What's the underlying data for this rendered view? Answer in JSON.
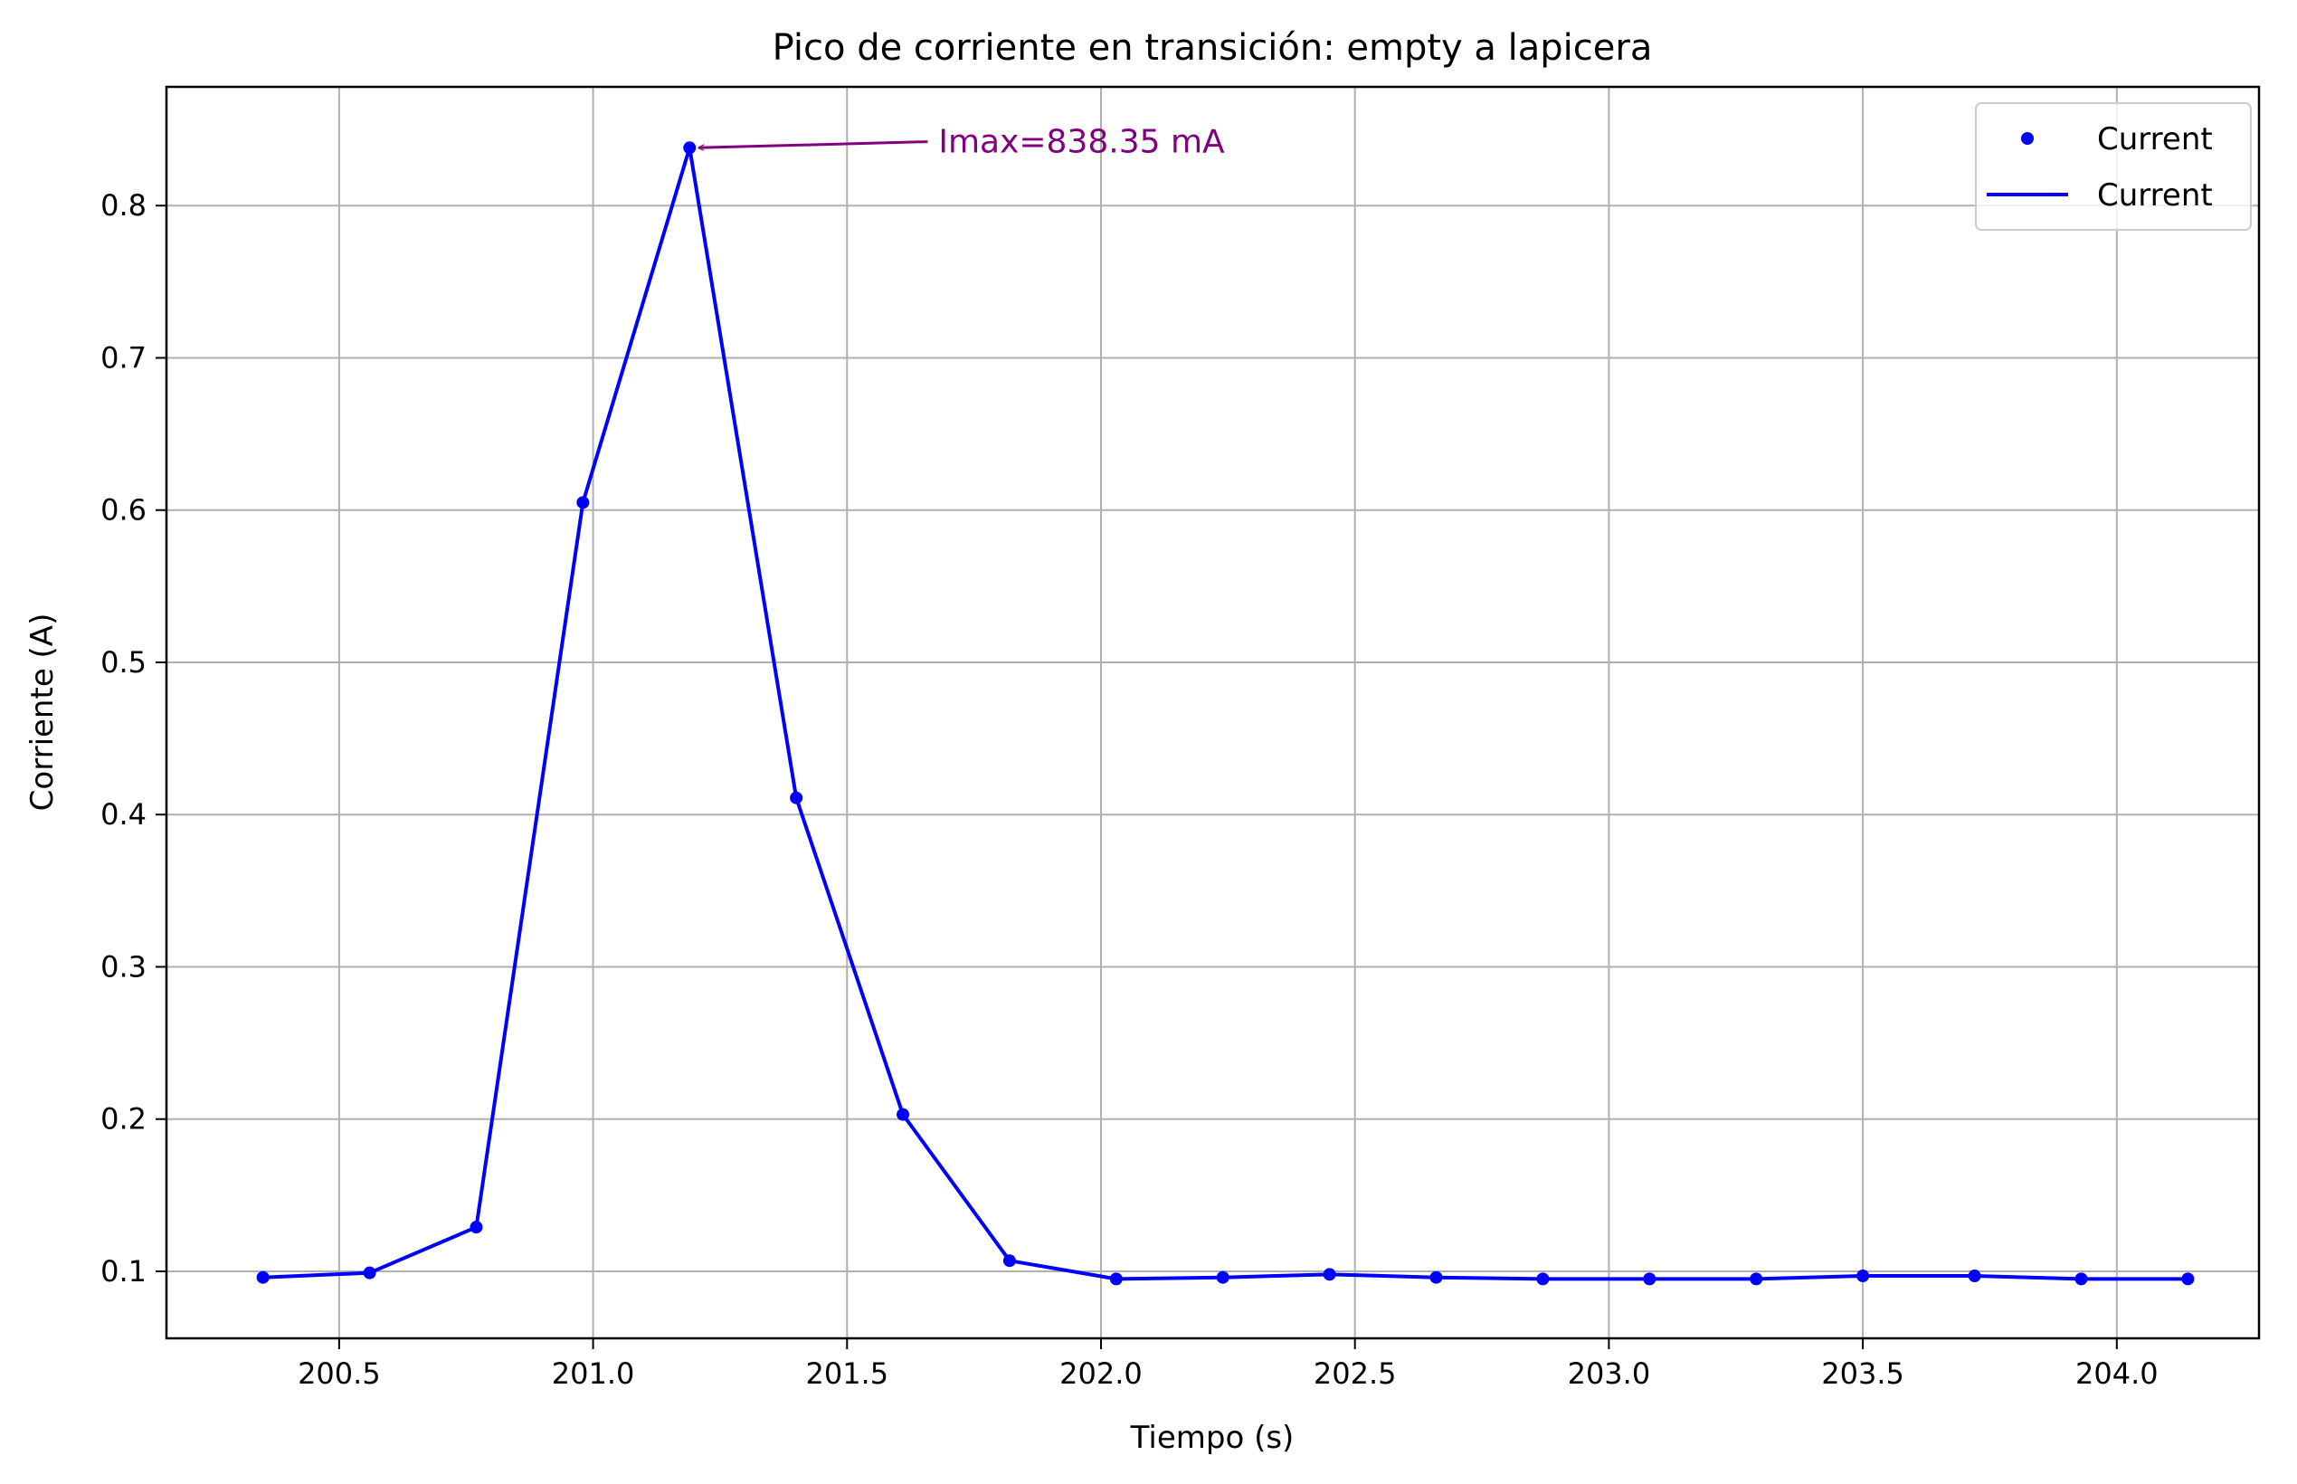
{
  "chart_data": {
    "type": "line",
    "title": "Pico de corriente en transición: empty a lapicera",
    "xlabel": "Tiempo (s)",
    "ylabel": "Corriente (A)",
    "xlim": [
      200.16,
      204.28
    ],
    "ylim": [
      0.056,
      0.878
    ],
    "xticks": [
      200.5,
      201.0,
      201.5,
      202.0,
      202.5,
      203.0,
      203.5,
      204.0
    ],
    "xtick_labels": [
      "200.5",
      "201.0",
      "201.5",
      "202.0",
      "202.5",
      "203.0",
      "203.5",
      "204.0"
    ],
    "yticks": [
      0.1,
      0.2,
      0.3,
      0.4,
      0.5,
      0.6,
      0.7,
      0.8
    ],
    "ytick_labels": [
      "0.1",
      "0.2",
      "0.3",
      "0.4",
      "0.5",
      "0.6",
      "0.7",
      "0.8"
    ],
    "grid": true,
    "legend_position": "top-right",
    "series": [
      {
        "name": "Current",
        "style": "markers",
        "color": "#0000ff",
        "x": [
          200.35,
          200.56,
          200.77,
          200.98,
          201.19,
          201.4,
          201.61,
          201.82,
          202.03,
          202.24,
          202.45,
          202.66,
          202.87,
          203.08,
          203.29,
          203.5,
          203.72,
          203.93,
          204.14
        ],
        "y": [
          0.096,
          0.099,
          0.129,
          0.605,
          0.838,
          0.411,
          0.203,
          0.107,
          0.095,
          0.096,
          0.098,
          0.096,
          0.095,
          0.095,
          0.095,
          0.097,
          0.097,
          0.095,
          0.095
        ]
      },
      {
        "name": "Current",
        "style": "line",
        "color": "#0000ff",
        "x": [
          200.35,
          200.56,
          200.77,
          200.98,
          201.19,
          201.4,
          201.61,
          201.82,
          202.03,
          202.24,
          202.45,
          202.66,
          202.87,
          203.08,
          203.29,
          203.5,
          203.72,
          203.93,
          204.14
        ],
        "y": [
          0.096,
          0.099,
          0.129,
          0.605,
          0.838,
          0.411,
          0.203,
          0.107,
          0.095,
          0.096,
          0.098,
          0.096,
          0.095,
          0.095,
          0.095,
          0.097,
          0.097,
          0.095,
          0.095
        ]
      }
    ],
    "annotations": [
      {
        "text": "Imax=838.35 mA",
        "point": [
          201.19,
          0.838
        ],
        "text_anchor_at": [
          201.68,
          0.842
        ],
        "color": "#800080"
      }
    ],
    "colors": {
      "grid": "#b0b0b0",
      "axes": "#000000"
    }
  }
}
